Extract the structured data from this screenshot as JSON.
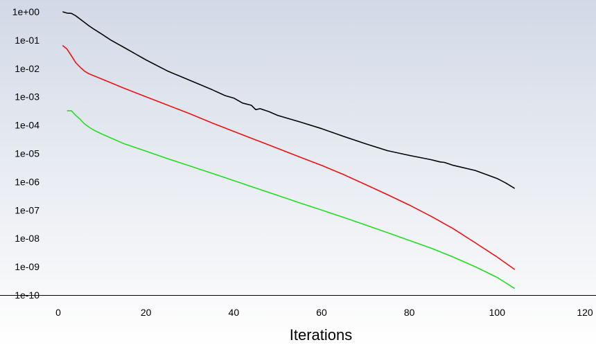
{
  "chart_data": {
    "type": "line",
    "title": "",
    "xlabel": "Iterations",
    "ylabel": "",
    "xlim": [
      0,
      120
    ],
    "ylim": [
      1e-10,
      1
    ],
    "yscale": "log",
    "grid": false,
    "legend": "none",
    "x_ticks": [
      "0",
      "20",
      "40",
      "60",
      "80",
      "100",
      "120"
    ],
    "y_ticks": [
      "1e-10",
      "1e-09",
      "1e-08",
      "1e-07",
      "1e-06",
      "1e-05",
      "1e-04",
      "1e-03",
      "1e-02",
      "1e-01",
      "1e+00"
    ],
    "series": [
      {
        "color": "#000000",
        "points": [
          [
            1,
            1.0
          ],
          [
            2,
            0.9
          ],
          [
            3,
            0.88
          ],
          [
            4,
            0.72
          ],
          [
            5,
            0.55
          ],
          [
            6,
            0.42
          ],
          [
            7,
            0.32
          ],
          [
            8,
            0.25
          ],
          [
            10,
            0.16
          ],
          [
            12,
            0.1
          ],
          [
            15,
            0.055
          ],
          [
            18,
            0.03
          ],
          [
            20,
            0.02
          ],
          [
            25,
            0.008
          ],
          [
            30,
            0.0038
          ],
          [
            35,
            0.0018
          ],
          [
            38,
            0.0011
          ],
          [
            40,
            0.0009
          ],
          [
            42,
            0.0006
          ],
          [
            44,
            0.0005
          ],
          [
            45,
            0.00035
          ],
          [
            46,
            0.00038
          ],
          [
            48,
            0.0003
          ],
          [
            50,
            0.00022
          ],
          [
            55,
            0.00013
          ],
          [
            60,
            7.5e-05
          ],
          [
            65,
            4e-05
          ],
          [
            70,
            2.2e-05
          ],
          [
            75,
            1.25e-05
          ],
          [
            80,
            8.5e-06
          ],
          [
            85,
            6e-06
          ],
          [
            87,
            5e-06
          ],
          [
            88,
            4.8e-06
          ],
          [
            90,
            3.8e-06
          ],
          [
            95,
            2.5e-06
          ],
          [
            100,
            1.3e-06
          ],
          [
            102,
            9e-07
          ],
          [
            104,
            5.8e-07
          ]
        ]
      },
      {
        "color": "#ee1111",
        "points": [
          [
            1,
            0.065
          ],
          [
            2,
            0.048
          ],
          [
            3,
            0.028
          ],
          [
            4,
            0.016
          ],
          [
            5,
            0.011
          ],
          [
            6,
            0.008
          ],
          [
            7,
            0.0065
          ],
          [
            8,
            0.0056
          ],
          [
            10,
            0.0042
          ],
          [
            15,
            0.002
          ],
          [
            20,
            0.001
          ],
          [
            25,
            0.0005
          ],
          [
            30,
            0.00025
          ],
          [
            35,
            0.00012
          ],
          [
            40,
            6e-05
          ],
          [
            45,
            3e-05
          ],
          [
            50,
            1.5e-05
          ],
          [
            55,
            7.5e-06
          ],
          [
            60,
            3.8e-06
          ],
          [
            65,
            1.8e-06
          ],
          [
            70,
            8e-07
          ],
          [
            75,
            3.5e-07
          ],
          [
            80,
            1.5e-07
          ],
          [
            85,
            6e-08
          ],
          [
            90,
            2.2e-08
          ],
          [
            95,
            7e-09
          ],
          [
            100,
            2.2e-09
          ],
          [
            104,
            8e-10
          ]
        ]
      },
      {
        "color": "#22dd22",
        "points": [
          [
            2,
            0.00032
          ],
          [
            3,
            0.00032
          ],
          [
            4,
            0.00022
          ],
          [
            5,
            0.00016
          ],
          [
            6,
            0.00011
          ],
          [
            7,
            8.5e-05
          ],
          [
            8,
            6.8e-05
          ],
          [
            9,
            5.7e-05
          ],
          [
            10,
            4.8e-05
          ],
          [
            15,
            2.2e-05
          ],
          [
            20,
            1.2e-05
          ],
          [
            25,
            6.5e-06
          ],
          [
            30,
            3.6e-06
          ],
          [
            35,
            2e-06
          ],
          [
            40,
            1.1e-06
          ],
          [
            45,
            6e-07
          ],
          [
            50,
            3.3e-07
          ],
          [
            55,
            1.8e-07
          ],
          [
            60,
            1e-07
          ],
          [
            65,
            5.5e-08
          ],
          [
            70,
            3e-08
          ],
          [
            75,
            1.6e-08
          ],
          [
            80,
            8.5e-09
          ],
          [
            85,
            4.5e-09
          ],
          [
            90,
            2.2e-09
          ],
          [
            95,
            1e-09
          ],
          [
            100,
            4.2e-10
          ],
          [
            104,
            1.7e-10
          ]
        ]
      }
    ]
  }
}
